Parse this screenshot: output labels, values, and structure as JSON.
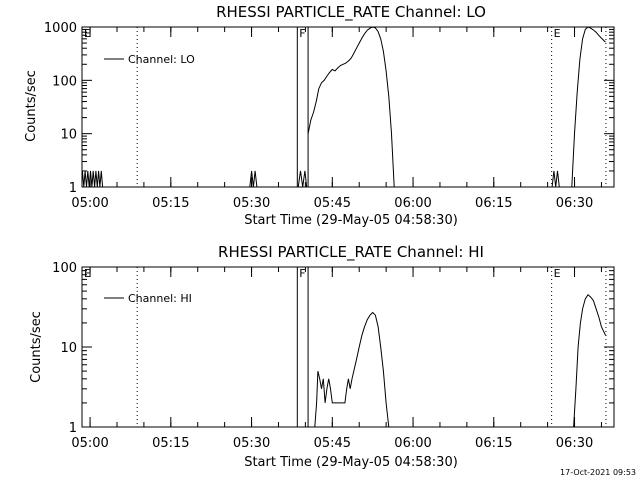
{
  "footer": {
    "timestamp": "17-Oct-2021 09:53"
  },
  "chart_data": [
    {
      "type": "line",
      "scale_y": "log",
      "title": "RHESSI PARTICLE_RATE Channel: LO",
      "xlabel": "Start Time (29-May-05 04:58:30)",
      "ylabel": "Counts/sec",
      "xlim": [
        "04:58:30",
        "06:37:20"
      ],
      "ylim": [
        1,
        1000
      ],
      "x_ticks": [
        "05:00",
        "05:15",
        "05:30",
        "05:45",
        "06:00",
        "06:15",
        "06:30"
      ],
      "y_ticks": [
        "1",
        "10",
        "100",
        "1000"
      ],
      "legend": {
        "position": "top-left",
        "entries": [
          "Channel: LO"
        ]
      },
      "markers": [
        {
          "time": "04:58:30",
          "style": "dotted",
          "label": "E"
        },
        {
          "time": "05:08:45",
          "style": "dotted",
          "label": ""
        },
        {
          "time": "05:38:30",
          "style": "solid",
          "label": "F"
        },
        {
          "time": "05:40:30",
          "style": "solid",
          "label": ""
        },
        {
          "time": "06:25:45",
          "style": "dotted",
          "label": "E"
        },
        {
          "time": "06:35:50",
          "style": "dotted",
          "label": ""
        }
      ],
      "series": [
        {
          "segments": [
            [
              [
                "04:58:35",
                2
              ],
              [
                "04:58:50",
                1
              ],
              [
                "04:59:05",
                2
              ],
              [
                "04:59:20",
                1
              ],
              [
                "04:59:35",
                2
              ],
              [
                "04:59:50",
                1
              ],
              [
                "05:00:05",
                2
              ],
              [
                "05:00:20",
                1
              ],
              [
                "05:00:35",
                2
              ],
              [
                "05:00:50",
                1
              ],
              [
                "05:01:05",
                2
              ],
              [
                "05:01:20",
                1
              ],
              [
                "05:01:35",
                2
              ],
              [
                "05:01:50",
                1
              ],
              [
                "05:02:05",
                2
              ],
              [
                "05:02:20",
                1
              ]
            ],
            [
              [
                "05:29:40",
                1
              ],
              [
                "05:30:00",
                2
              ],
              [
                "05:30:20",
                1
              ],
              [
                "05:30:40",
                2
              ],
              [
                "05:31:00",
                1
              ]
            ],
            [
              [
                "05:38:40",
                1
              ],
              [
                "05:39:05",
                2
              ],
              [
                "05:39:30",
                1
              ],
              [
                "05:39:55",
                2
              ],
              [
                "05:40:15",
                1
              ]
            ],
            [
              [
                "05:40:30",
                10
              ],
              [
                "05:41:00",
                18
              ],
              [
                "05:41:30",
                25
              ],
              [
                "05:42:00",
                40
              ],
              [
                "05:42:30",
                70
              ],
              [
                "05:43:00",
                90
              ],
              [
                "05:43:30",
                100
              ],
              [
                "05:44:00",
                120
              ],
              [
                "05:44:30",
                140
              ],
              [
                "05:45:00",
                160
              ],
              [
                "05:45:30",
                150
              ],
              [
                "05:46:00",
                170
              ],
              [
                "05:46:30",
                190
              ],
              [
                "05:47:00",
                200
              ],
              [
                "05:47:30",
                210
              ],
              [
                "05:48:00",
                230
              ],
              [
                "05:48:30",
                260
              ],
              [
                "05:49:00",
                320
              ],
              [
                "05:49:30",
                400
              ],
              [
                "05:50:00",
                500
              ],
              [
                "05:50:30",
                620
              ],
              [
                "05:51:00",
                750
              ],
              [
                "05:51:30",
                870
              ],
              [
                "05:52:00",
                950
              ],
              [
                "05:52:30",
                1000
              ],
              [
                "05:53:00",
                960
              ],
              [
                "05:53:30",
                820
              ],
              [
                "05:54:00",
                600
              ],
              [
                "05:54:30",
                350
              ],
              [
                "05:55:00",
                150
              ],
              [
                "05:55:30",
                50
              ],
              [
                "05:56:00",
                10
              ],
              [
                "05:56:30",
                1
              ]
            ],
            [
              [
                "06:25:50",
                1
              ],
              [
                "06:26:10",
                2
              ],
              [
                "06:26:30",
                1
              ],
              [
                "06:26:50",
                2
              ],
              [
                "06:27:10",
                1
              ]
            ],
            [
              [
                "06:29:30",
                1
              ],
              [
                "06:30:00",
                10
              ],
              [
                "06:30:30",
                60
              ],
              [
                "06:31:00",
                250
              ],
              [
                "06:31:30",
                600
              ],
              [
                "06:32:00",
                900
              ],
              [
                "06:32:30",
                1000
              ],
              [
                "06:33:00",
                950
              ],
              [
                "06:33:30",
                880
              ],
              [
                "06:34:00",
                800
              ],
              [
                "06:34:30",
                700
              ],
              [
                "06:35:00",
                620
              ],
              [
                "06:35:45",
                520
              ]
            ]
          ]
        }
      ]
    },
    {
      "type": "line",
      "scale_y": "log",
      "title": "RHESSI PARTICLE_RATE Channel: HI",
      "xlabel": "Start Time (29-May-05 04:58:30)",
      "ylabel": "Counts/sec",
      "xlim": [
        "04:58:30",
        "06:37:20"
      ],
      "ylim": [
        1,
        100
      ],
      "x_ticks": [
        "05:00",
        "05:15",
        "05:30",
        "05:45",
        "06:00",
        "06:15",
        "06:30"
      ],
      "y_ticks": [
        "1",
        "10",
        "100"
      ],
      "legend": {
        "position": "top-left",
        "entries": [
          "Channel: HI"
        ]
      },
      "markers": [
        {
          "time": "04:58:30",
          "style": "dotted",
          "label": "E"
        },
        {
          "time": "05:08:45",
          "style": "dotted",
          "label": ""
        },
        {
          "time": "05:38:30",
          "style": "solid",
          "label": "F"
        },
        {
          "time": "05:40:30",
          "style": "solid",
          "label": ""
        },
        {
          "time": "06:25:45",
          "style": "dotted",
          "label": "E"
        },
        {
          "time": "06:35:50",
          "style": "dotted",
          "label": ""
        }
      ],
      "series": [
        {
          "segments": [
            [
              [
                "05:41:45",
                1
              ],
              [
                "05:42:05",
                2
              ],
              [
                "05:42:20",
                5
              ],
              [
                "05:42:40",
                4
              ],
              [
                "05:43:00",
                3
              ],
              [
                "05:43:20",
                4
              ],
              [
                "05:43:40",
                2
              ],
              [
                "05:44:00",
                3
              ],
              [
                "05:44:20",
                4
              ],
              [
                "05:44:40",
                3
              ],
              [
                "05:45:00",
                2
              ],
              [
                "05:45:20",
                2
              ],
              [
                "05:45:40",
                2
              ],
              [
                "05:46:00",
                2
              ],
              [
                "05:46:20",
                2
              ],
              [
                "05:46:40",
                2
              ],
              [
                "05:47:00",
                2
              ],
              [
                "05:47:20",
                2
              ],
              [
                "05:47:40",
                3
              ],
              [
                "05:48:00",
                4
              ],
              [
                "05:48:20",
                3
              ],
              [
                "05:48:40",
                4
              ],
              [
                "05:49:00",
                5
              ],
              [
                "05:49:30",
                7
              ],
              [
                "05:50:00",
                10
              ],
              [
                "05:50:30",
                14
              ],
              [
                "05:51:00",
                18
              ],
              [
                "05:51:30",
                22
              ],
              [
                "05:52:00",
                25
              ],
              [
                "05:52:30",
                27
              ],
              [
                "05:53:00",
                25
              ],
              [
                "05:53:30",
                18
              ],
              [
                "05:54:00",
                10
              ],
              [
                "05:54:30",
                5
              ],
              [
                "05:55:00",
                2
              ],
              [
                "05:55:30",
                1
              ]
            ],
            [
              [
                "06:29:50",
                1
              ],
              [
                "06:30:15",
                3
              ],
              [
                "06:30:40",
                10
              ],
              [
                "06:31:05",
                20
              ],
              [
                "06:31:30",
                30
              ],
              [
                "06:32:00",
                40
              ],
              [
                "06:32:30",
                45
              ],
              [
                "06:33:00",
                42
              ],
              [
                "06:33:30",
                38
              ],
              [
                "06:34:00",
                30
              ],
              [
                "06:34:30",
                24
              ],
              [
                "06:35:00",
                18
              ],
              [
                "06:35:45",
                14
              ]
            ]
          ]
        }
      ]
    }
  ]
}
